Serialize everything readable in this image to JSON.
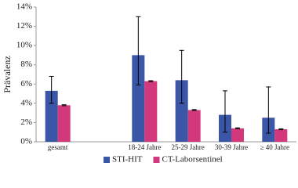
{
  "chart_data": {
    "type": "bar",
    "y_label": "Prävalenz",
    "categories": [
      "gesamt",
      null,
      "18-24 Jahre",
      "25-29 Jahre",
      "30-39 Jahre",
      "≥ 40 Jahre"
    ],
    "series": [
      {
        "name": "STI-HIT",
        "color": "#3b56a6",
        "values": [
          5.3,
          null,
          9.0,
          6.4,
          2.8,
          2.5
        ],
        "lower": [
          4.0,
          null,
          5.9,
          4.0,
          1.0,
          0.9
        ],
        "upper": [
          6.8,
          null,
          13.0,
          9.5,
          5.3,
          5.7
        ]
      },
      {
        "name": "CT-Laborsentinel",
        "color": "#d3377c",
        "values": [
          3.8,
          null,
          6.3,
          3.3,
          1.4,
          1.3
        ],
        "lower": [
          3.75,
          null,
          6.25,
          3.25,
          1.35,
          1.25
        ],
        "upper": [
          3.85,
          null,
          6.35,
          3.35,
          1.45,
          1.35
        ]
      }
    ],
    "ylim": [
      0,
      14
    ],
    "yticks": [
      {
        "value": 0,
        "label": "0%"
      },
      {
        "value": 2,
        "label": "2%"
      },
      {
        "value": 4,
        "label": "4%"
      },
      {
        "value": 6,
        "label": "6%"
      },
      {
        "value": 8,
        "label": "8%"
      },
      {
        "value": 10,
        "label": "10%"
      },
      {
        "value": 12,
        "label": "12%"
      },
      {
        "value": 14,
        "label": "14%"
      }
    ],
    "legend": "bottom"
  }
}
